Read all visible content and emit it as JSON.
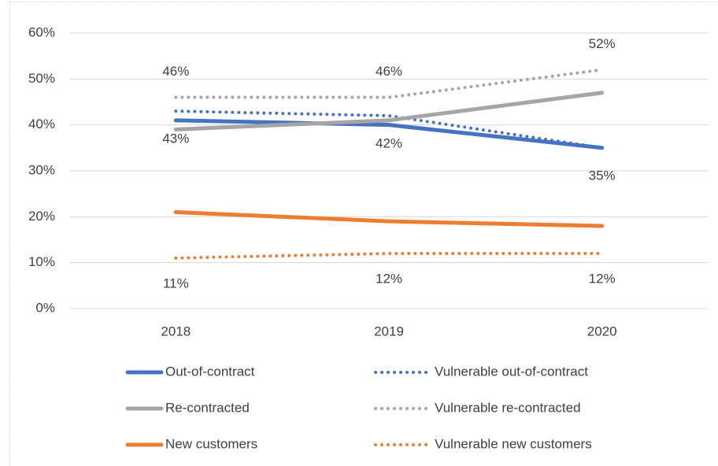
{
  "chart_data": {
    "type": "line",
    "categories": [
      "2018",
      "2019",
      "2020"
    ],
    "series": [
      {
        "name": "Out-of-contract",
        "color": "#4472c4",
        "line_style": "solid",
        "values": [
          41,
          40,
          35
        ]
      },
      {
        "name": "Vulnerable out-of-contract",
        "color": "#4472c4",
        "line_style": "dotted",
        "values": [
          43,
          42,
          35
        ],
        "value_labels": [
          "43%",
          "42%",
          "35%"
        ]
      },
      {
        "name": "Re-contracted",
        "color": "#a5a5a5",
        "line_style": "solid",
        "values": [
          39,
          41,
          47
        ]
      },
      {
        "name": "Vulnerable re-contracted",
        "color": "#a5a5a5",
        "line_style": "dotted",
        "values": [
          46,
          46,
          52
        ],
        "value_labels": [
          "46%",
          "46%",
          "52%"
        ]
      },
      {
        "name": "New customers",
        "color": "#ed7d31",
        "line_style": "solid",
        "values": [
          21,
          19,
          18
        ]
      },
      {
        "name": "Vulnerable new customers",
        "color": "#ed7d31",
        "line_style": "dotted",
        "values": [
          11,
          12,
          12
        ],
        "value_labels": [
          "11%",
          "12%",
          "12%"
        ]
      }
    ],
    "ylim": [
      0,
      60
    ],
    "yticks": [
      {
        "value": 0,
        "label": "0%"
      },
      {
        "value": 10,
        "label": "10%"
      },
      {
        "value": 20,
        "label": "20%"
      },
      {
        "value": 30,
        "label": "30%"
      },
      {
        "value": 40,
        "label": "40%"
      },
      {
        "value": 50,
        "label": "50%"
      },
      {
        "value": 60,
        "label": "60%"
      }
    ],
    "grid": true,
    "legend": "bottom"
  }
}
